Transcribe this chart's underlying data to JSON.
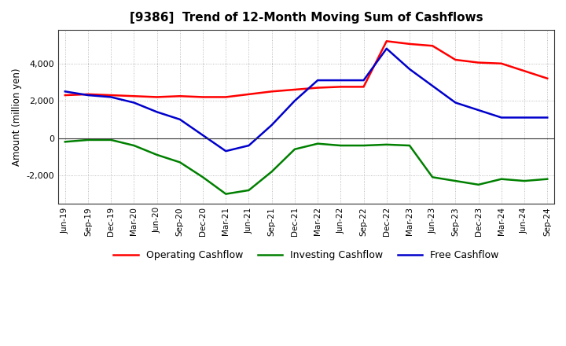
{
  "title": "[9386]  Trend of 12-Month Moving Sum of Cashflows",
  "ylabel": "Amount (million yen)",
  "background_color": "#ffffff",
  "plot_bg_color": "#ffffff",
  "grid_color": "#aaaaaa",
  "ylim": [
    -3500,
    5800
  ],
  "yticks": [
    -2000,
    0,
    2000,
    4000
  ],
  "x_labels": [
    "Jun-19",
    "Sep-19",
    "Dec-19",
    "Mar-20",
    "Jun-20",
    "Sep-20",
    "Dec-20",
    "Mar-21",
    "Jun-21",
    "Sep-21",
    "Dec-21",
    "Mar-22",
    "Jun-22",
    "Sep-22",
    "Dec-22",
    "Mar-23",
    "Jun-23",
    "Sep-23",
    "Dec-23",
    "Mar-24",
    "Jun-24",
    "Sep-24"
  ],
  "operating_cashflow": [
    2300,
    2350,
    2300,
    2250,
    2200,
    2250,
    2200,
    2200,
    2350,
    2500,
    2600,
    2700,
    2750,
    2750,
    5200,
    5050,
    4950,
    4200,
    4050,
    4000,
    3600,
    3200
  ],
  "investing_cashflow": [
    -200,
    -100,
    -100,
    -400,
    -900,
    -1300,
    -2100,
    -3000,
    -2800,
    -1800,
    -600,
    -300,
    -400,
    -400,
    -350,
    -400,
    -2100,
    -2300,
    -2500,
    -2200,
    -2300,
    -2200
  ],
  "free_cashflow": [
    2500,
    2300,
    2200,
    1900,
    1400,
    1000,
    150,
    -700,
    -400,
    700,
    2000,
    3100,
    3100,
    3100,
    4800,
    3700,
    2800,
    1900,
    1500,
    1100,
    1100,
    1100
  ],
  "operating_color": "#ff0000",
  "investing_color": "#008000",
  "free_color": "#0000cc",
  "legend_labels": [
    "Operating Cashflow",
    "Investing Cashflow",
    "Free Cashflow"
  ]
}
